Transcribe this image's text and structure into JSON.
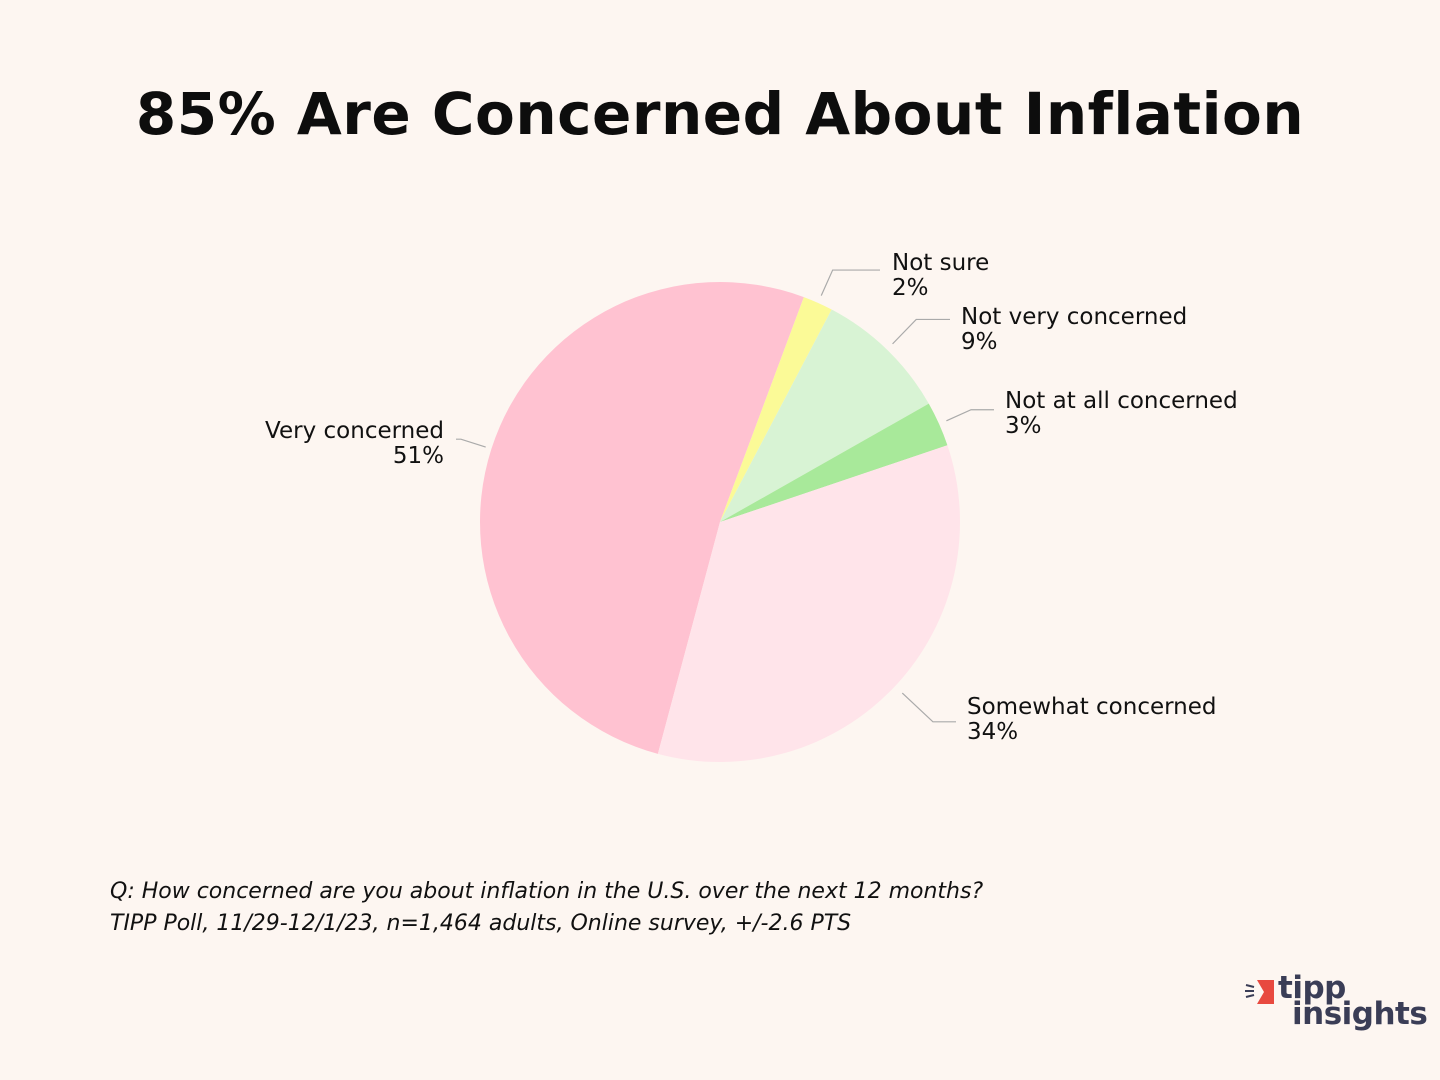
{
  "chart_data": {
    "type": "pie",
    "title": "85% Are Concerned About Inflation",
    "slices": [
      {
        "label": "Very concerned",
        "value": 51,
        "value_label": "51%",
        "color": "#ffc2d1"
      },
      {
        "label": "Not sure",
        "value": 2,
        "value_label": "2%",
        "color": "#fbfa97"
      },
      {
        "label": "Not very concerned",
        "value": 9,
        "value_label": "9%",
        "color": "#d8f3d4"
      },
      {
        "label": "Not at all concerned",
        "value": 3,
        "value_label": "3%",
        "color": "#a8e99a"
      },
      {
        "label": "Somewhat concerned",
        "value": 34,
        "value_label": "34%",
        "color": "#ffe4ea"
      }
    ]
  },
  "footnote": {
    "question": "Q:  How concerned are you about inflation in the U.S. over the next 12 months?",
    "source": "TIPP Poll, 11/29-12/1/23, n=1,464 adults, Online survey, +/-2.6 PTS"
  },
  "logo": {
    "word1": "tipp",
    "word2": "insights",
    "accent_color": "#e8493f",
    "text_color": "#3a3d56"
  }
}
